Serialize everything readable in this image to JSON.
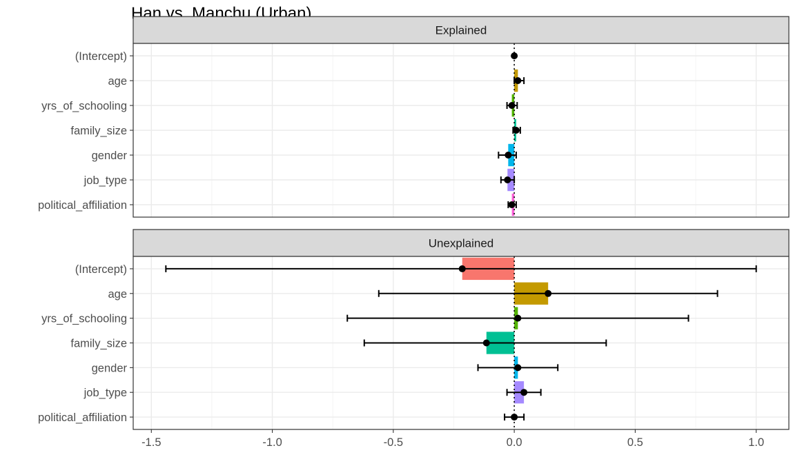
{
  "chart_data": {
    "type": "bar",
    "title": "Han vs. Manchu (Urban)",
    "categories": [
      "(Intercept)",
      "age",
      "yrs_of_schooling",
      "family_size",
      "gender",
      "job_type",
      "political_affiliation"
    ],
    "colors": [
      "#F8766D",
      "#C49A00",
      "#53B400",
      "#00C094",
      "#00B6EB",
      "#A58AFF",
      "#FB61D7"
    ],
    "xlim": [
      -1.575,
      1.135
    ],
    "xticks": [
      -1.5,
      -1.0,
      -0.5,
      0.0,
      0.5,
      1.0
    ],
    "xtick_labels": [
      "-1.5",
      "-1.0",
      "-0.5",
      "0.0",
      "0.5",
      "1.0"
    ],
    "panels": [
      {
        "label": "Explained",
        "values": [
          0.0,
          0.015,
          -0.01,
          0.008,
          -0.025,
          -0.028,
          -0.01
        ],
        "lower": [
          0.0,
          0.0,
          -0.03,
          -0.005,
          -0.065,
          -0.055,
          -0.025
        ],
        "upper": [
          0.0,
          0.04,
          0.012,
          0.025,
          0.008,
          0.0,
          0.008
        ]
      },
      {
        "label": "Unexplained",
        "values": [
          -0.215,
          0.14,
          0.015,
          -0.115,
          0.015,
          0.04,
          0.0
        ],
        "lower": [
          -1.44,
          -0.56,
          -0.69,
          -0.62,
          -0.15,
          -0.03,
          -0.04
        ],
        "upper": [
          1.0,
          0.84,
          0.72,
          0.38,
          0.18,
          0.11,
          0.04
        ]
      }
    ]
  }
}
